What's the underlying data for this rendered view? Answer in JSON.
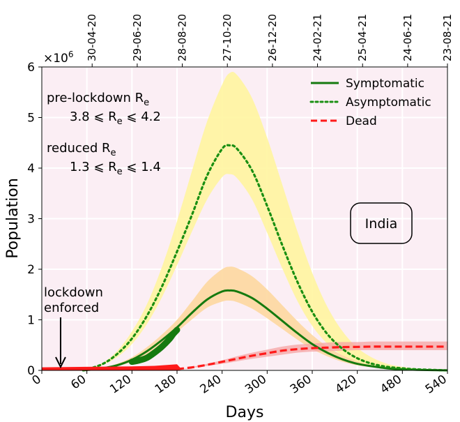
{
  "chart_data": {
    "type": "line",
    "xlabel": "Days",
    "ylabel": "Population",
    "y_multiplier_label": "×10",
    "y_multiplier_exp": "6",
    "xlim": [
      0,
      540
    ],
    "ylim": [
      0,
      6
    ],
    "x_ticks": [
      0,
      60,
      120,
      180,
      240,
      300,
      360,
      420,
      480,
      540
    ],
    "y_ticks": [
      0,
      1,
      2,
      3,
      4,
      5,
      6
    ],
    "top_axis": {
      "tick_days": [
        67,
        127,
        187,
        247,
        307,
        367,
        427,
        487,
        547
      ],
      "labels": [
        "30-04-20",
        "29-06-20",
        "28-08-20",
        "27-10-20",
        "26-12-20",
        "24-02-21",
        "25-04-21",
        "24-06-21",
        "23-08-21"
      ]
    },
    "grid": true,
    "background": "#fbeef4",
    "legend_position": "top-right",
    "colors": {
      "symptomatic": "#157a0f",
      "asymptomatic": "#1a8f12",
      "dead": "#ff1a1a",
      "asym_band": "#fff59a",
      "sym_band": "#fdd69a",
      "dead_band": "#f6a3a3"
    },
    "series": [
      {
        "name": "Symptomatic",
        "style": "solid",
        "x": [
          55,
          80,
          100,
          120,
          140,
          160,
          180,
          200,
          220,
          240,
          250,
          260,
          280,
          300,
          320,
          340,
          360,
          380,
          400,
          420,
          440,
          460,
          480,
          500,
          520,
          540
        ],
        "y": [
          0.0,
          0.04,
          0.1,
          0.21,
          0.38,
          0.6,
          0.85,
          1.14,
          1.4,
          1.56,
          1.58,
          1.56,
          1.43,
          1.22,
          0.98,
          0.74,
          0.52,
          0.35,
          0.22,
          0.13,
          0.08,
          0.04,
          0.02,
          0.01,
          0.005,
          0.0
        ],
        "band_lower": [
          0.0,
          0.03,
          0.08,
          0.17,
          0.32,
          0.52,
          0.76,
          1.01,
          1.24,
          1.36,
          1.38,
          1.35,
          1.22,
          1.03,
          0.82,
          0.61,
          0.42,
          0.28,
          0.17,
          0.1,
          0.06,
          0.03,
          0.02,
          0.01,
          0.004,
          0.0
        ],
        "band_upper": [
          0.0,
          0.05,
          0.13,
          0.26,
          0.46,
          0.71,
          1.0,
          1.37,
          1.75,
          2.0,
          2.05,
          2.02,
          1.86,
          1.6,
          1.29,
          0.98,
          0.7,
          0.47,
          0.3,
          0.18,
          0.1,
          0.05,
          0.03,
          0.015,
          0.007,
          0.0
        ]
      },
      {
        "name": "Asymptomatic",
        "style": "dotted",
        "x": [
          55,
          80,
          100,
          120,
          140,
          160,
          180,
          200,
          220,
          240,
          250,
          260,
          280,
          300,
          320,
          340,
          360,
          380,
          400,
          420,
          440,
          460,
          480,
          500,
          520,
          540
        ],
        "y": [
          0.0,
          0.12,
          0.32,
          0.63,
          1.08,
          1.66,
          2.35,
          3.08,
          3.85,
          4.38,
          4.45,
          4.38,
          3.95,
          3.25,
          2.48,
          1.76,
          1.16,
          0.72,
          0.43,
          0.24,
          0.13,
          0.07,
          0.04,
          0.02,
          0.01,
          0.0
        ],
        "band_lower": [
          0.0,
          0.1,
          0.26,
          0.52,
          0.92,
          1.45,
          2.08,
          2.75,
          3.38,
          3.82,
          3.88,
          3.8,
          3.38,
          2.72,
          2.02,
          1.38,
          0.88,
          0.53,
          0.3,
          0.16,
          0.09,
          0.05,
          0.03,
          0.015,
          0.007,
          0.0
        ],
        "band_upper": [
          0.0,
          0.14,
          0.38,
          0.77,
          1.31,
          2.05,
          2.95,
          3.95,
          4.92,
          5.65,
          5.88,
          5.84,
          5.38,
          4.6,
          3.68,
          2.76,
          1.93,
          1.26,
          0.78,
          0.45,
          0.25,
          0.13,
          0.07,
          0.035,
          0.015,
          0.0
        ]
      },
      {
        "name": "Dead",
        "style": "dashed",
        "x": [
          0,
          180,
          200,
          220,
          240,
          260,
          280,
          300,
          320,
          340,
          360,
          380,
          400,
          420,
          440,
          460,
          480,
          500,
          520,
          540
        ],
        "y": [
          0.01,
          0.025,
          0.06,
          0.11,
          0.17,
          0.23,
          0.29,
          0.34,
          0.39,
          0.42,
          0.44,
          0.45,
          0.46,
          0.465,
          0.47,
          0.47,
          0.47,
          0.47,
          0.47,
          0.47
        ],
        "band_lower": [
          0.01,
          0.02,
          0.05,
          0.09,
          0.13,
          0.18,
          0.23,
          0.27,
          0.31,
          0.35,
          0.37,
          0.38,
          0.39,
          0.4,
          0.4,
          0.4,
          0.4,
          0.4,
          0.4,
          0.4
        ],
        "band_upper": [
          0.01,
          0.03,
          0.07,
          0.13,
          0.2,
          0.28,
          0.35,
          0.41,
          0.47,
          0.51,
          0.53,
          0.55,
          0.56,
          0.56,
          0.57,
          0.57,
          0.57,
          0.57,
          0.57,
          0.57
        ]
      }
    ],
    "observed_symptomatic": {
      "x": [
        120,
        130,
        140,
        150,
        160,
        170,
        175,
        180
      ],
      "y": [
        0.17,
        0.2,
        0.25,
        0.35,
        0.47,
        0.62,
        0.72,
        0.8
      ]
    },
    "observed_dead_band": {
      "x": [
        0,
        60,
        120,
        150,
        180,
        185
      ],
      "y_lower": [
        0.0,
        0.0,
        0.0,
        0.0,
        0.0,
        0.02
      ],
      "y_upper": [
        0.06,
        0.07,
        0.08,
        0.09,
        0.12,
        0.04
      ]
    },
    "annotations": {
      "pre_lockdown_title": "pre-lockdown R",
      "pre_lockdown_title_sub": "e",
      "pre_lockdown_range_low": "3.8 ⩽ R",
      "pre_lockdown_range_sub": "e",
      "pre_lockdown_range_high": " ⩽ 4.2",
      "reduced_title": "reduced R",
      "reduced_title_sub": "e",
      "reduced_range_low": "1.3 ⩽ R",
      "reduced_range_sub": "e",
      "reduced_range_high": " ⩽ 1.4",
      "lockdown_line1": "lockdown",
      "lockdown_line2": "enforced",
      "lockdown_day": 25,
      "country": "India"
    }
  }
}
